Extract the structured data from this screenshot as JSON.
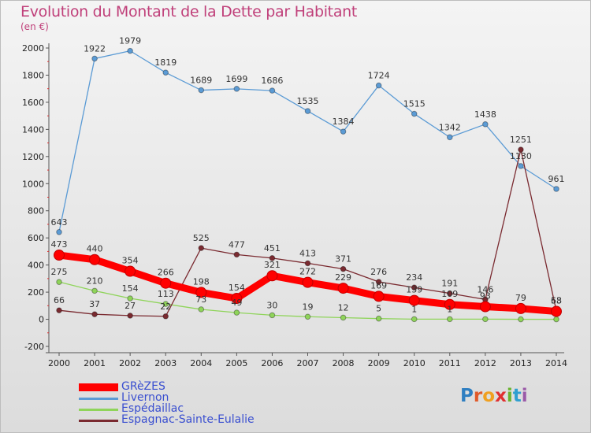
{
  "title": "Evolution du Montant de la Dette par Habitant",
  "subtitle": "(en €)",
  "logo": {
    "letters": [
      "P",
      "r",
      "o",
      "x",
      "i",
      "t",
      "i"
    ],
    "colors": [
      "#2f7fc1",
      "#e05a2a",
      "#f0a020",
      "#e03030",
      "#6ab32e",
      "#2f9fd0",
      "#9a5aa8"
    ]
  },
  "chart_data": {
    "type": "line",
    "x": [
      "2000",
      "2001",
      "2002",
      "2003",
      "2004",
      "2005",
      "2006",
      "2007",
      "2008",
      "2009",
      "2010",
      "2011",
      "2012",
      "2013",
      "2014"
    ],
    "ylim": [
      -200,
      2000
    ],
    "yticks": [
      "-200",
      "0",
      "200",
      "400",
      "600",
      "800",
      "1000",
      "1200",
      "1400",
      "1600",
      "1800",
      "2000"
    ],
    "grid": false,
    "legend_position": "bottom-left",
    "series": [
      {
        "name": "Livernon",
        "color": "#5b9bd5",
        "values": [
          643,
          1922,
          1979,
          1819,
          1689,
          1699,
          1686,
          1535,
          1384,
          1724,
          1515,
          1342,
          1438,
          1130,
          961
        ],
        "labels": [
          "643",
          "1922",
          "1979",
          "1819",
          "1689",
          "1699",
          "1686",
          "1535",
          "1384",
          "1724",
          "1515",
          "1342",
          "1438",
          "1130",
          "961"
        ]
      },
      {
        "name": "Espédaillac",
        "color": "#8fd45a",
        "values": [
          275,
          210,
          154,
          113,
          73,
          49,
          30,
          19,
          12,
          5,
          1,
          1,
          1,
          0,
          0
        ],
        "labels": [
          "275",
          "210",
          "154",
          "113",
          "73",
          "49",
          "30",
          "19",
          "12",
          "5",
          "1",
          "1",
          "",
          "",
          ""
        ]
      },
      {
        "name": "Espagnac-Sainte-Eulalie",
        "color": "#7a2a30",
        "values": [
          66,
          37,
          27,
          22,
          525,
          477,
          451,
          413,
          371,
          276,
          234,
          191,
          146,
          1251,
          63
        ],
        "labels": [
          "66",
          "37",
          "27",
          "22",
          "525",
          "477",
          "451",
          "413",
          "371",
          "276",
          "234",
          "191",
          "146",
          "1251",
          "63"
        ]
      },
      {
        "name": "GRèZES",
        "color": "#ff0000",
        "values": [
          473,
          440,
          354,
          266,
          198,
          154,
          321,
          272,
          229,
          169,
          139,
          109,
          93,
          79,
          58
        ],
        "labels": [
          "473",
          "440",
          "354",
          "266",
          "198",
          "154",
          "321",
          "272",
          "229",
          "169",
          "139",
          "109",
          "93",
          "79",
          "58"
        ]
      }
    ]
  },
  "legend": [
    {
      "label": "GRèZES",
      "color": "#ff0000",
      "thickness": 10
    },
    {
      "label": "Livernon",
      "color": "#5b9bd5",
      "thickness": 3
    },
    {
      "label": "Espédaillac",
      "color": "#8fd45a",
      "thickness": 3
    },
    {
      "label": "Espagnac-Sainte-Eulalie",
      "color": "#7a2a30",
      "thickness": 3
    }
  ]
}
